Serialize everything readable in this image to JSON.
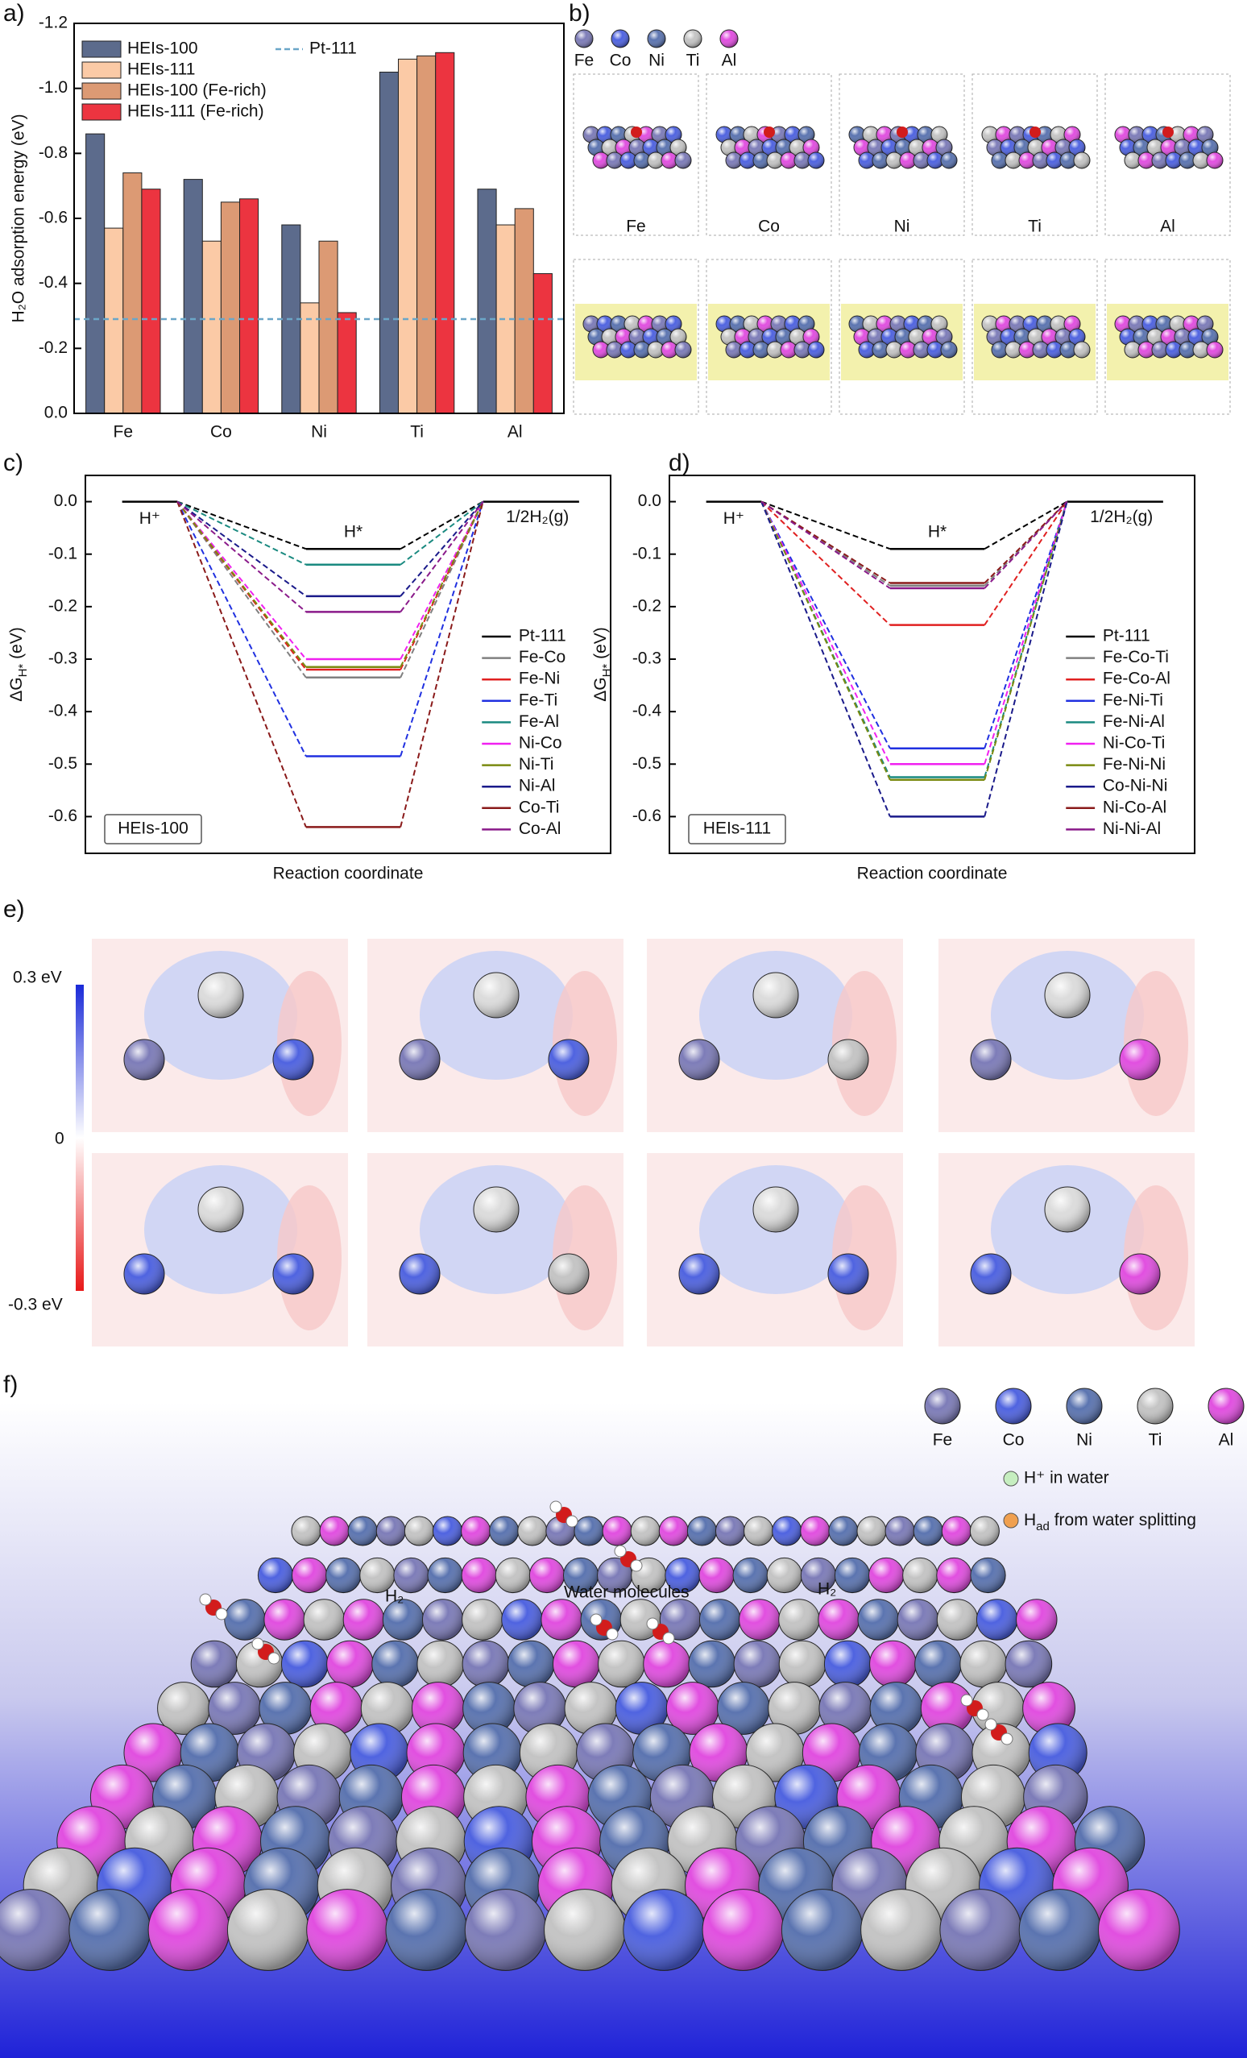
{
  "panel_labels": [
    "a)",
    "b)",
    "c)",
    "d)",
    "e)",
    "f)"
  ],
  "elements": [
    {
      "name": "Fe",
      "color": "#7d7cb8"
    },
    {
      "name": "Co",
      "color": "#4f63e0"
    },
    {
      "name": "Ni",
      "color": "#5b74b0"
    },
    {
      "name": "Ti",
      "color": "#c4c4c4"
    },
    {
      "name": "Al",
      "color": "#e14fe0"
    }
  ],
  "chart_data": [
    {
      "type": "bar",
      "y_label": "H₂O adsorption energy (eV)",
      "categories": [
        "Fe",
        "Co",
        "Ni",
        "Ti",
        "Al"
      ],
      "series": [
        {
          "name": "HEIs-100",
          "color": "#5c6b8c",
          "values": [
            -0.86,
            -0.72,
            -0.58,
            -1.05,
            -0.69
          ]
        },
        {
          "name": "HEIs-111",
          "color": "#fbcaa6",
          "values": [
            -0.57,
            -0.53,
            -0.34,
            -1.09,
            -0.58
          ]
        },
        {
          "name": "HEIs-100 (Fe-rich)",
          "color": "#dc9a74",
          "values": [
            -0.74,
            -0.65,
            -0.53,
            -1.1,
            -0.63
          ]
        },
        {
          "name": "HEIs-111 (Fe-rich)",
          "color": "#ec3440",
          "values": [
            -0.69,
            -0.66,
            -0.31,
            -1.11,
            -0.43
          ]
        }
      ],
      "reference_line": {
        "name": "Pt-111",
        "value": -0.29,
        "color": "#6aa6c8"
      },
      "ylim": [
        0,
        -1.2
      ],
      "yticks": [
        {
          "value": 0,
          "label": "0.0"
        },
        -0.2,
        -0.4,
        -0.6,
        -0.8,
        {
          "value": -1,
          "label": "-1.0"
        },
        -1.2
      ]
    },
    {
      "type": "energy",
      "y_label": [
        "ΔG",
        "H*",
        " (eV)"
      ],
      "x_label": "Reaction coordinate",
      "box_label": "HEIs-100",
      "initial": {
        "label": "H⁺",
        "value": 0
      },
      "intermediate_label": "H*",
      "final": {
        "label": "1/2H₂(g)",
        "value": 0
      },
      "series": [
        {
          "name": "Pt-111",
          "color": "#000000",
          "value": -0.09
        },
        {
          "name": "Fe-Co",
          "color": "#808080",
          "value": -0.335
        },
        {
          "name": "Fe-Ni",
          "color": "#e02020",
          "value": -0.32
        },
        {
          "name": "Fe-Ti",
          "color": "#2030e0",
          "value": -0.485
        },
        {
          "name": "Fe-Al",
          "color": "#1a8a80",
          "value": -0.12
        },
        {
          "name": "Ni-Co",
          "color": "#f020f0",
          "value": -0.3
        },
        {
          "name": "Ni-Ti",
          "color": "#7a8a10",
          "value": -0.315
        },
        {
          "name": "Ni-Al",
          "color": "#1a1a8a",
          "value": -0.18
        },
        {
          "name": "Co-Ti",
          "color": "#8a1a1a",
          "value": -0.62
        },
        {
          "name": "Co-Al",
          "color": "#8a1a8a",
          "value": -0.21
        }
      ],
      "ylim": [
        -0.67,
        0.05
      ],
      "yticks": [
        {
          "value": 0,
          "label": "0.0"
        },
        -0.1,
        -0.2,
        -0.3,
        -0.4,
        -0.5,
        -0.6
      ]
    },
    {
      "type": "energy",
      "y_label": [
        "ΔG",
        "H*",
        " (eV)"
      ],
      "x_label": "Reaction coordinate",
      "box_label": "HEIs-111",
      "initial": {
        "label": "H⁺",
        "value": 0
      },
      "intermediate_label": "H*",
      "final": {
        "label": "1/2H₂(g)",
        "value": 0
      },
      "series": [
        {
          "name": "Pt-111",
          "color": "#000000",
          "value": -0.09
        },
        {
          "name": "Fe-Co-Ti",
          "color": "#808080",
          "value": -0.16
        },
        {
          "name": "Fe-Co-Al",
          "color": "#e02020",
          "value": -0.235
        },
        {
          "name": "Fe-Ni-Ti",
          "color": "#2030e0",
          "value": -0.47
        },
        {
          "name": "Fe-Ni-Al",
          "color": "#1a8a80",
          "value": -0.525
        },
        {
          "name": "Ni-Co-Ti",
          "color": "#f020f0",
          "value": -0.5
        },
        {
          "name": "Fe-Ni-Ni",
          "color": "#7a8a10",
          "value": -0.53
        },
        {
          "name": "Co-Ni-Ni",
          "color": "#1a1a8a",
          "value": -0.6
        },
        {
          "name": "Ni-Co-Al",
          "color": "#8a1a1a",
          "value": -0.155
        },
        {
          "name": "Ni-Ni-Al",
          "color": "#8a1a8a",
          "value": -0.165
        }
      ],
      "ylim": [
        -0.67,
        0.05
      ],
      "yticks": [
        {
          "value": 0,
          "label": "0.0"
        },
        -0.1,
        -0.2,
        -0.3,
        -0.4,
        -0.5,
        -0.6
      ]
    }
  ],
  "panel_b": {
    "structure_labels": [
      "Fe",
      "Co",
      "Ni",
      "Ti",
      "Al"
    ]
  },
  "panel_e": {
    "scale_labels": [
      "0.3 eV",
      "0",
      "-0.3 eV"
    ]
  },
  "panel_f": {
    "h_plus": "H⁺ in water",
    "h_ad": [
      "H",
      "ad",
      " from water splitting"
    ],
    "labels": [
      "H₂",
      "Water molecules",
      "H₂"
    ]
  }
}
